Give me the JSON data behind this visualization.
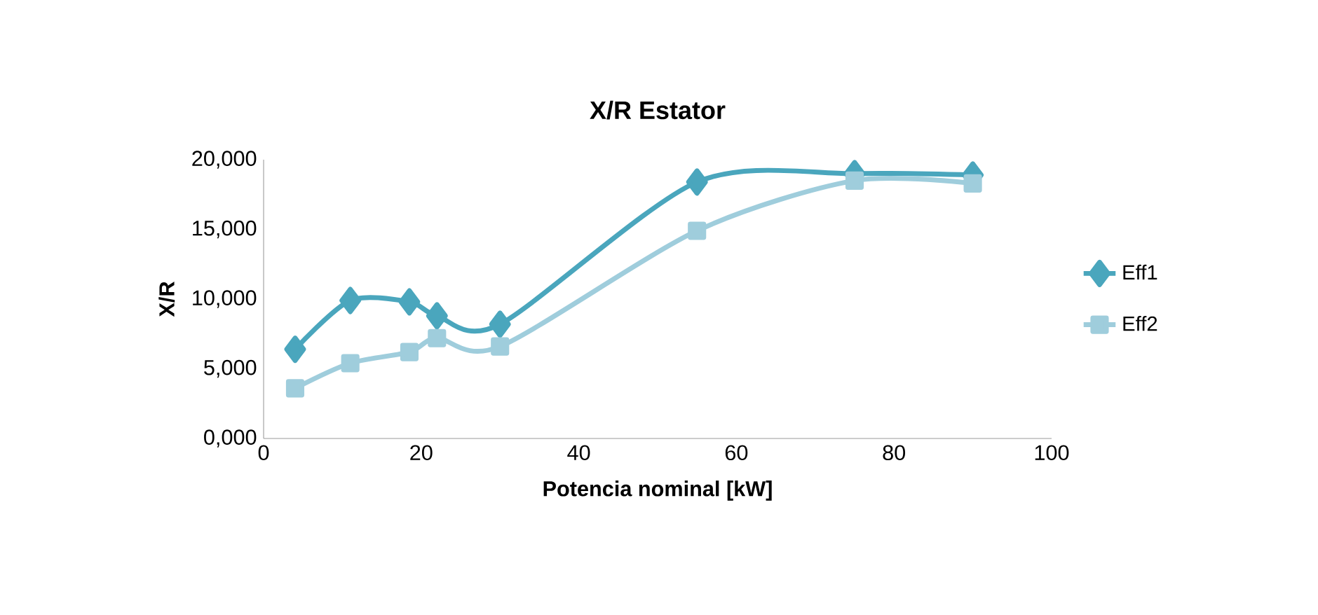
{
  "chart_data": {
    "type": "line",
    "title": "X/R Estator",
    "xlabel": "Potencia nominal [kW]",
    "ylabel": "X/R",
    "x": [
      4,
      11,
      18.5,
      22,
      30,
      55,
      75,
      90
    ],
    "series": [
      {
        "name": "Eff1",
        "color": "#4aa6bd",
        "marker": "diamond",
        "values": [
          6400,
          9900,
          9800,
          8800,
          8200,
          18400,
          19000,
          18900
        ]
      },
      {
        "name": "Eff2",
        "color": "#9fcddc",
        "marker": "square",
        "values": [
          3600,
          5400,
          6200,
          7200,
          6600,
          14900,
          18500,
          18300
        ]
      }
    ],
    "xlim": [
      0,
      100
    ],
    "xticks": [
      0,
      20,
      40,
      60,
      80,
      100
    ],
    "ylim": [
      0,
      20000
    ],
    "yticks": [
      {
        "value": 0,
        "label": "0,000"
      },
      {
        "value": 5000,
        "label": "5,000"
      },
      {
        "value": 10000,
        "label": "10,000"
      },
      {
        "value": 15000,
        "label": "15,000"
      },
      {
        "value": 20000,
        "label": "20,000"
      }
    ],
    "legend": "right",
    "grid": false,
    "line_style": "solid"
  }
}
